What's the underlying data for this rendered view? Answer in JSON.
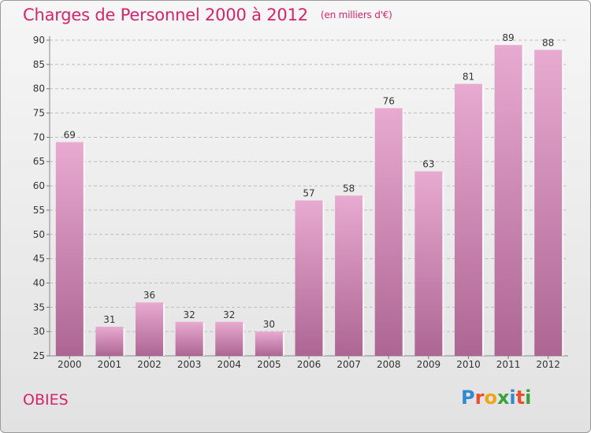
{
  "header": {
    "title": "Charges de Personnel 2000 à 2012",
    "subtitle": "(en milliers d'€)"
  },
  "footer": {
    "commune": "OBIES",
    "logo_text": "Proxiti"
  },
  "colors": {
    "title": "#d4246c",
    "bar_top": "#e6a8cd",
    "bar_bottom": "#b06a95",
    "grid": "#bdbdbd"
  },
  "chart_data": {
    "type": "bar",
    "title": "Charges de Personnel 2000 à 2012",
    "subtitle": "(en milliers d'€)",
    "categories": [
      "2000",
      "2001",
      "2002",
      "2003",
      "2004",
      "2005",
      "2006",
      "2007",
      "2008",
      "2009",
      "2010",
      "2011",
      "2012"
    ],
    "values": [
      69,
      31,
      36,
      32,
      32,
      30,
      57,
      58,
      76,
      63,
      81,
      89,
      88
    ],
    "ylim": [
      25,
      90
    ],
    "yticks": [
      25,
      30,
      35,
      40,
      45,
      50,
      55,
      60,
      65,
      70,
      75,
      80,
      85,
      90
    ],
    "grid": "horizontal dashed",
    "xlabel": "",
    "ylabel": ""
  }
}
